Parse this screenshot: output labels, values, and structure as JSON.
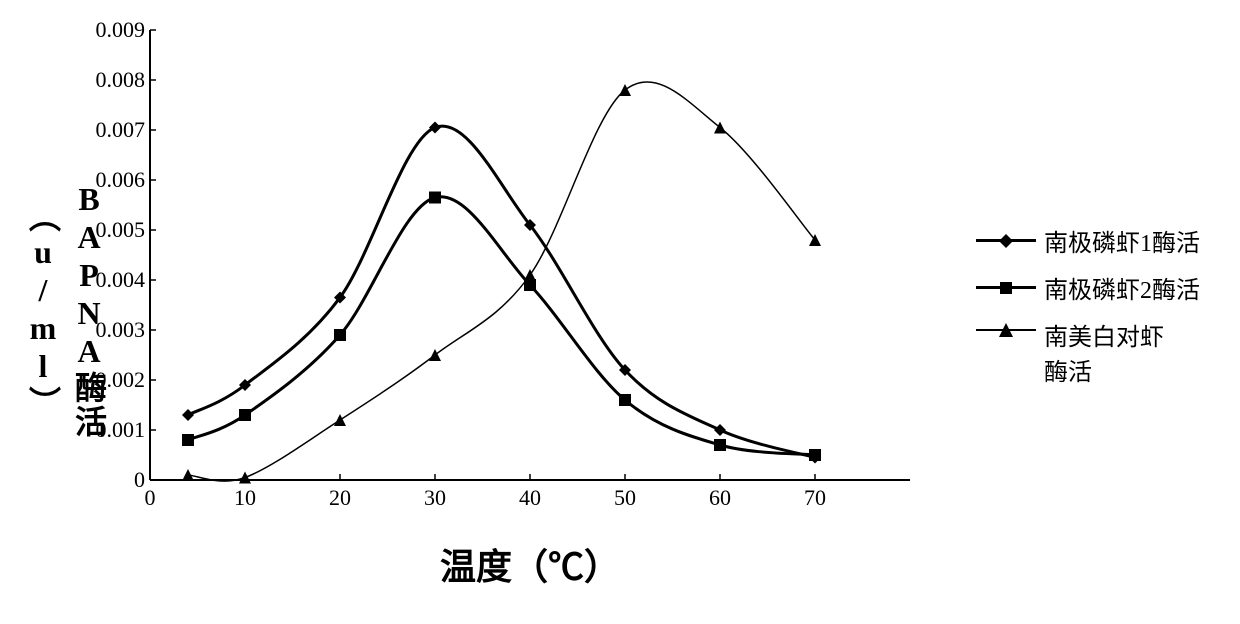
{
  "chart": {
    "type": "line",
    "x_values": [
      4,
      10,
      20,
      30,
      40,
      50,
      60,
      70
    ],
    "series": [
      {
        "name": "南极磷虾1酶活",
        "marker": "diamond",
        "marker_size": 12,
        "line_width": 3,
        "color": "#000000",
        "y": [
          0.0013,
          0.0019,
          0.00365,
          0.00705,
          0.0051,
          0.0022,
          0.001,
          0.00045
        ]
      },
      {
        "name": "南极磷虾2酶活",
        "marker": "square",
        "marker_size": 12,
        "line_width": 3,
        "color": "#000000",
        "y": [
          0.0008,
          0.0013,
          0.0029,
          0.00565,
          0.0039,
          0.0016,
          0.0007,
          0.0005
        ]
      },
      {
        "name": "南美白对虾酶活",
        "marker": "triangle",
        "marker_size": 12,
        "line_width": 1.5,
        "color": "#000000",
        "y": [
          0.0001,
          5e-05,
          0.0012,
          0.0025,
          0.0041,
          0.0078,
          0.00705,
          0.0048
        ]
      }
    ],
    "x_axis": {
      "label": "温度（℃）",
      "min": 0,
      "max": 80,
      "ticks": [
        0,
        10,
        20,
        30,
        40,
        50,
        60,
        70
      ],
      "label_fontsize": 36
    },
    "y_axis": {
      "label": "BAPNA酶活（u/ml）",
      "min": 0,
      "max": 0.009,
      "ticks": [
        0,
        0.001,
        0.002,
        0.003,
        0.004,
        0.005,
        0.006,
        0.007,
        0.008,
        0.009
      ],
      "label_fontsize": 32
    },
    "tick_fontsize": 22,
    "legend_fontsize": 24,
    "background_color": "#ffffff",
    "axis_color": "#000000",
    "tickmark_inside": true
  }
}
